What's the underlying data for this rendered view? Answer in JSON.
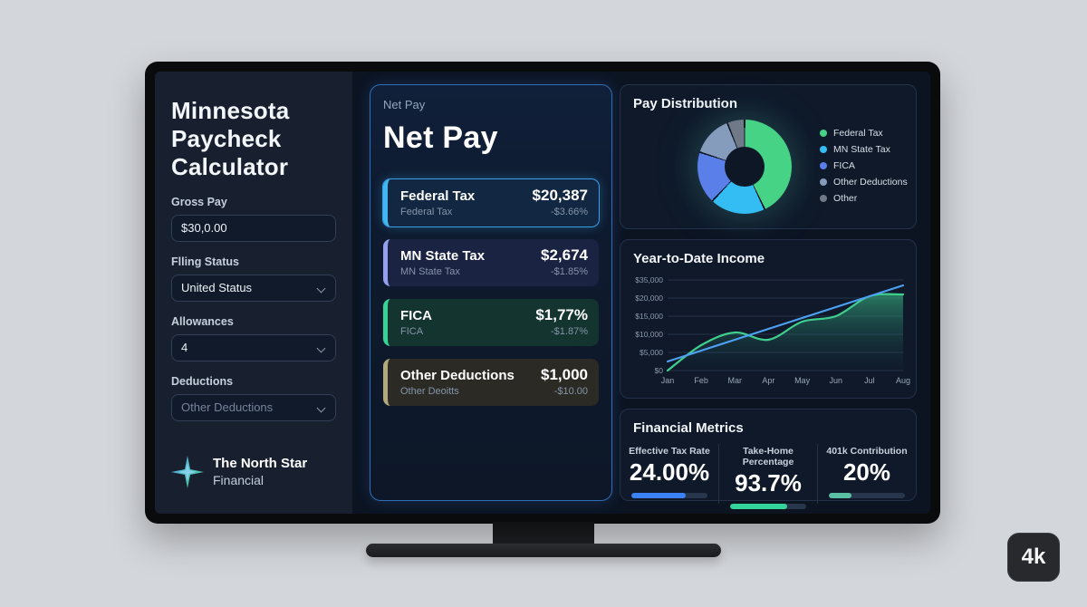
{
  "page": {
    "badge": "4k"
  },
  "sidebar": {
    "title": "Minnesota Paycheck Calculator",
    "fields": [
      {
        "label": "Gross Pay",
        "type": "input",
        "value": "$30,0.00",
        "muted": false
      },
      {
        "label": "Flling Status",
        "type": "select",
        "value": "United Status",
        "muted": false
      },
      {
        "label": "Allowances",
        "type": "select",
        "value": "4",
        "muted": false
      },
      {
        "label": "Deductions",
        "type": "select",
        "value": "Other Deductions",
        "muted": true
      }
    ],
    "brand": {
      "name": "The North Star",
      "sub": "Financial"
    }
  },
  "netpay": {
    "eyebrow": "Net Pay",
    "title": "Net Pay",
    "rows": [
      {
        "title": "Federal Tax",
        "value": "$20,387",
        "sub": "Federal Tax",
        "subvalue": "-$3.66%",
        "accent": "#41b6f0",
        "bg": "#122741",
        "selected": true
      },
      {
        "title": "MN State Tax",
        "value": "$2,674",
        "sub": "MN State Tax",
        "subvalue": "-$1.85%",
        "accent": "#94a0ee",
        "bg": "#1a2342",
        "selected": false
      },
      {
        "title": "FICA",
        "value": "$1,77%",
        "sub": "FICA",
        "subvalue": "-$1.87%",
        "accent": "#37d296",
        "bg": "#14342f",
        "selected": false
      },
      {
        "title": "Other Deductions",
        "value": "$1,000",
        "sub": "Other Deoitts",
        "subvalue": "-$10.00",
        "accent": "#b3a87c",
        "bg": "#2b2a24",
        "selected": false
      }
    ]
  },
  "chart_data": [
    {
      "type": "pie",
      "title": "Pay Distribution",
      "labels": [
        "Federal Tax",
        "MN State Tax",
        "FICA",
        "Other Deductions",
        "Other"
      ],
      "values": [
        43,
        19,
        18,
        14,
        6
      ],
      "colors": [
        "#46d385",
        "#33bdf2",
        "#5b7fe9",
        "#869cbd",
        "#6f7987"
      ],
      "legend_position": "right",
      "hole_color": "#0d1726"
    },
    {
      "type": "line",
      "title": "Year-to-Date Income",
      "x": [
        "Jan",
        "Feb",
        "Mar",
        "Apr",
        "May",
        "Jun",
        "Jul",
        "Aug"
      ],
      "yticks": [
        "$35,000",
        "$20,000",
        "$15,000",
        "$10,000",
        "$5,000",
        "$0"
      ],
      "ylim": [
        0,
        25000
      ],
      "grid": true,
      "series": [
        {
          "name": "YTD Income",
          "color": "#3fcf8e",
          "area": true,
          "values": [
            0,
            7000,
            10500,
            8500,
            13500,
            15000,
            20500,
            21000
          ]
        },
        {
          "name": "Trend",
          "color": "#4da0f2",
          "area": false,
          "values": [
            2500,
            5500,
            8500,
            11500,
            14500,
            17500,
            20500,
            23500
          ]
        }
      ]
    }
  ],
  "metrics": {
    "title": "Financial Metrics",
    "items": [
      {
        "label": "Effective Tax Rate",
        "value": "24.00%",
        "bar_pct": 72,
        "color": "#3b82f6"
      },
      {
        "label": "Take-Home Percentage",
        "value": "93.7%",
        "bar_pct": 75,
        "color": "#34d399"
      },
      {
        "label": "401k Contribution",
        "value": "20%",
        "bar_pct": 30,
        "color": "#5bbfa3"
      }
    ]
  }
}
